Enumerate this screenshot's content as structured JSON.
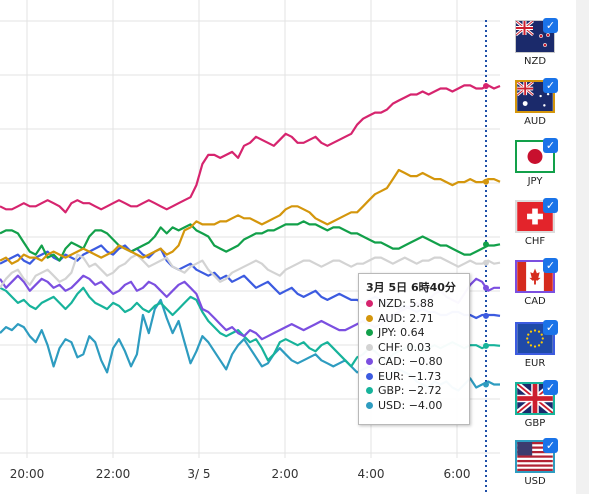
{
  "chart_data": {
    "type": "line",
    "title": "",
    "xlabel": "",
    "ylabel": "",
    "x_ticks": [
      "20:00",
      "22:00",
      "3/ 5",
      "2:00",
      "4:00",
      "6:00"
    ],
    "ylim": [
      -6.5,
      8
    ],
    "grid": true,
    "legend": "none",
    "crosshair_label": "3月 5日 6時40分",
    "series": [
      {
        "name": "NZD",
        "color": "#d6246e",
        "values": [
          1.9,
          1.8,
          1.8,
          1.9,
          2.0,
          1.9,
          1.9,
          2.0,
          2.1,
          2.0,
          1.9,
          1.7,
          2.0,
          2.1,
          2.0,
          2.0,
          1.9,
          1.8,
          1.9,
          2.0,
          2.1,
          2.0,
          1.9,
          1.9,
          2.0,
          2.1,
          2.0,
          1.9,
          1.8,
          1.9,
          2.0,
          2.1,
          2.2,
          2.6,
          3.3,
          3.6,
          3.6,
          3.5,
          3.6,
          3.7,
          3.5,
          3.9,
          4.0,
          4.2,
          4.1,
          4.0,
          3.9,
          4.1,
          4.3,
          4.2,
          4.0,
          4.0,
          4.1,
          4.2,
          4.0,
          3.9,
          4.0,
          4.1,
          4.2,
          4.3,
          4.6,
          4.8,
          4.9,
          5.0,
          5.0,
          5.1,
          5.3,
          5.4,
          5.5,
          5.6,
          5.6,
          5.7,
          5.6,
          5.7,
          5.8,
          5.8,
          5.7,
          5.8,
          5.9,
          5.9,
          5.8,
          5.8,
          5.9,
          5.8,
          5.88
        ]
      },
      {
        "name": "AUD",
        "color": "#d4960c",
        "values": [
          0.1,
          0.2,
          0.0,
          0.1,
          0.3,
          0.2,
          0.2,
          0.1,
          0.3,
          0.4,
          0.3,
          0.2,
          0.3,
          0.4,
          0.5,
          0.4,
          0.3,
          0.2,
          0.3,
          0.4,
          0.6,
          0.5,
          0.4,
          0.3,
          0.2,
          0.3,
          0.4,
          0.5,
          0.3,
          0.4,
          0.6,
          1.1,
          1.2,
          1.4,
          1.3,
          1.3,
          1.3,
          1.4,
          1.4,
          1.5,
          1.6,
          1.5,
          1.5,
          1.4,
          1.3,
          1.4,
          1.5,
          1.6,
          1.8,
          1.9,
          1.9,
          1.8,
          1.7,
          1.5,
          1.4,
          1.3,
          1.4,
          1.5,
          1.6,
          1.7,
          1.7,
          1.9,
          2.1,
          2.3,
          2.4,
          2.5,
          2.8,
          3.1,
          3.0,
          2.9,
          2.9,
          3.0,
          2.9,
          2.8,
          2.8,
          2.7,
          2.6,
          2.7,
          2.7,
          2.8,
          2.7,
          2.7,
          2.8,
          2.8,
          2.71
        ]
      },
      {
        "name": "JPY",
        "color": "#12a04a",
        "values": [
          1.0,
          1.1,
          1.1,
          1.0,
          0.7,
          0.4,
          0.3,
          0.6,
          0.2,
          0.3,
          0.1,
          0.5,
          0.7,
          0.6,
          0.5,
          0.9,
          1.1,
          1.1,
          1.0,
          0.8,
          0.6,
          0.5,
          0.4,
          0.5,
          0.6,
          0.7,
          0.9,
          1.2,
          1.0,
          1.2,
          1.1,
          1.2,
          1.3,
          1.1,
          1.0,
          0.9,
          0.6,
          0.5,
          0.4,
          0.5,
          0.6,
          0.8,
          0.9,
          1.0,
          1.0,
          1.1,
          1.1,
          1.2,
          1.3,
          1.3,
          1.3,
          1.4,
          1.3,
          1.3,
          1.2,
          1.1,
          1.2,
          1.2,
          1.1,
          1.0,
          1.0,
          0.9,
          0.8,
          0.7,
          0.7,
          0.6,
          0.5,
          0.5,
          0.6,
          0.7,
          0.8,
          0.9,
          0.8,
          0.7,
          0.6,
          0.6,
          0.5,
          0.4,
          0.3,
          0.3,
          0.4,
          0.5,
          0.6,
          0.6,
          0.64
        ]
      },
      {
        "name": "CHF",
        "color": "#d3d3d3",
        "values": [
          -0.8,
          -0.5,
          -0.3,
          -0.2,
          -0.5,
          -0.7,
          -0.4,
          -0.3,
          -0.2,
          -0.4,
          -0.6,
          -0.5,
          -0.3,
          0.3,
          0.2,
          -0.1,
          0.0,
          -0.2,
          -0.4,
          -0.3,
          -0.1,
          0.0,
          0.2,
          0.3,
          0.1,
          -0.1,
          0.0,
          0.1,
          0.2,
          -0.1,
          -0.2,
          -0.3,
          -0.1,
          0.0,
          0.1,
          -0.2,
          -0.4,
          -0.6,
          -0.5,
          -0.3,
          -0.2,
          -0.1,
          0.0,
          0.1,
          0.0,
          -0.2,
          -0.3,
          -0.4,
          -0.2,
          -0.1,
          0.0,
          0.1,
          0.1,
          0.0,
          -0.1,
          0.0,
          0.1,
          0.1,
          0.0,
          -0.1,
          0.0,
          0.0,
          0.1,
          0.2,
          0.2,
          0.1,
          0.0,
          0.1,
          0.2,
          0.1,
          0.0,
          0.1,
          0.1,
          0.2,
          0.2,
          0.1,
          0.0,
          -0.1,
          0.0,
          0.1,
          0.0,
          0.0,
          0.1,
          0.0,
          0.03
        ]
      },
      {
        "name": "CAD",
        "color": "#7b4fe0",
        "values": [
          -0.5,
          -0.8,
          -0.6,
          -0.4,
          -0.6,
          -0.9,
          -0.7,
          -0.5,
          -0.6,
          -0.8,
          -0.7,
          -0.9,
          -0.8,
          -0.6,
          -0.4,
          -0.5,
          -0.7,
          -0.6,
          -0.8,
          -1.0,
          -0.9,
          -0.7,
          -0.6,
          -0.9,
          -0.8,
          -0.6,
          -0.7,
          -0.9,
          -1.1,
          -0.9,
          -0.7,
          -0.6,
          -0.8,
          -1.0,
          -1.5,
          -1.6,
          -1.8,
          -2.0,
          -2.2,
          -2.1,
          -2.3,
          -2.4,
          -2.2,
          -2.3,
          -2.5,
          -2.4,
          -2.3,
          -2.2,
          -2.1,
          -2.0,
          -2.1,
          -2.2,
          -2.1,
          -2.0,
          -1.9,
          -2.0,
          -2.1,
          -2.2,
          -2.2,
          -2.1,
          -2.0,
          -1.9,
          -2.0,
          -2.1,
          -2.0,
          -1.8,
          -1.7,
          -1.6,
          -1.5,
          -1.4,
          -1.3,
          -1.4,
          -1.2,
          -1.0,
          -0.9,
          -1.1,
          -1.2,
          -1.3,
          -1.0,
          -0.7,
          -0.5,
          -0.6,
          -0.9,
          -0.8,
          -0.8
        ]
      },
      {
        "name": "EUR",
        "color": "#3c5be0",
        "values": [
          0.0,
          0.1,
          0.2,
          0.3,
          0.1,
          0.0,
          0.2,
          0.3,
          0.4,
          0.2,
          0.1,
          0.3,
          0.2,
          0.1,
          0.3,
          0.4,
          0.5,
          0.6,
          0.4,
          0.3,
          0.5,
          0.6,
          0.4,
          0.5,
          0.3,
          0.2,
          0.4,
          0.5,
          0.1,
          -0.1,
          -0.2,
          -0.1,
          0.0,
          -0.2,
          -0.3,
          -0.4,
          -0.3,
          -0.5,
          -0.4,
          -0.6,
          -0.5,
          -0.4,
          -0.6,
          -0.8,
          -0.7,
          -0.6,
          -0.8,
          -1.0,
          -0.9,
          -0.8,
          -1.0,
          -1.1,
          -1.0,
          -0.9,
          -1.1,
          -1.2,
          -1.1,
          -1.0,
          -1.1,
          -1.2,
          -1.2,
          -1.3,
          -1.2,
          -1.1,
          -1.2,
          -1.3,
          -1.4,
          -1.5,
          -1.4,
          -1.5,
          -1.6,
          -1.5,
          -1.6,
          -1.6,
          -1.7,
          -1.7,
          -1.6,
          -1.6,
          -1.7,
          -1.7,
          -1.8,
          -1.7,
          -1.7,
          -1.7,
          -1.73
        ]
      },
      {
        "name": "GBP",
        "color": "#17b39b",
        "values": [
          -0.8,
          -0.9,
          -1.1,
          -1.3,
          -1.2,
          -1.4,
          -1.5,
          -1.3,
          -1.2,
          -1.1,
          -1.3,
          -1.5,
          -1.3,
          -1.0,
          -0.8,
          -1.1,
          -1.3,
          -1.4,
          -1.5,
          -1.3,
          -1.4,
          -1.6,
          -1.5,
          -1.3,
          -1.5,
          -1.6,
          -1.4,
          -1.3,
          -1.5,
          -1.7,
          -1.5,
          -1.3,
          -1.1,
          -1.2,
          -1.6,
          -1.9,
          -2.1,
          -2.3,
          -2.4,
          -2.3,
          -2.2,
          -2.4,
          -2.6,
          -2.5,
          -2.8,
          -3.2,
          -3.0,
          -2.6,
          -2.5,
          -2.6,
          -2.7,
          -2.6,
          -2.8,
          -2.9,
          -2.7,
          -2.6,
          -2.8,
          -3.0,
          -3.2,
          -3.4,
          -3.1,
          -3.0,
          -2.8,
          -2.9,
          -3.1,
          -3.2,
          -3.0,
          -2.9,
          -2.8,
          -2.7,
          -2.8,
          -2.9,
          -2.8,
          -2.7,
          -2.8,
          -2.7,
          -2.6,
          -2.7,
          -2.8,
          -2.7,
          -2.7,
          -2.8,
          -2.7,
          -2.7,
          -2.72
        ]
      },
      {
        "name": "USD",
        "color": "#2e9cc0",
        "values": [
          -2.3,
          -2.1,
          -2.2,
          -2.0,
          -2.1,
          -2.4,
          -2.6,
          -2.2,
          -2.7,
          -3.4,
          -2.8,
          -2.5,
          -2.6,
          -3.1,
          -3.0,
          -2.4,
          -2.6,
          -3.2,
          -3.6,
          -2.8,
          -2.5,
          -2.9,
          -3.4,
          -3.0,
          -1.7,
          -2.3,
          -1.5,
          -1.2,
          -1.8,
          -2.3,
          -1.9,
          -2.6,
          -3.3,
          -2.9,
          -2.4,
          -2.6,
          -2.9,
          -3.2,
          -3.5,
          -3.0,
          -2.7,
          -2.5,
          -2.8,
          -3.1,
          -3.4,
          -3.3,
          -3.0,
          -2.8,
          -3.0,
          -3.2,
          -3.3,
          -3.2,
          -3.1,
          -3.0,
          -3.2,
          -3.3,
          -3.4,
          -3.3,
          -3.2,
          -3.4,
          -3.6,
          -3.5,
          -3.4,
          -3.5,
          -3.7,
          -3.8,
          -3.6,
          -3.5,
          -3.6,
          -3.7,
          -3.9,
          -4.0,
          -4.1,
          -3.9,
          -4.0,
          -3.9,
          -4.1,
          -4.2,
          -4.0,
          -3.8,
          -4.1,
          -4.0,
          -3.9,
          -4.0,
          -4.0
        ]
      }
    ]
  },
  "tooltip": {
    "title": "3月 5日 6時40分",
    "rows": [
      {
        "label": "NZD: 5.88",
        "color": "#d6246e"
      },
      {
        "label": "AUD: 2.71",
        "color": "#d4960c"
      },
      {
        "label": "JPY: 0.64",
        "color": "#12a04a"
      },
      {
        "label": "CHF: 0.03",
        "color": "#d3d3d3"
      },
      {
        "label": "CAD: −0.80",
        "color": "#7b4fe0"
      },
      {
        "label": "EUR: −1.73",
        "color": "#3c5be0"
      },
      {
        "label": "GBP: −2.72",
        "color": "#17b39b"
      },
      {
        "label": "USD: −4.00",
        "color": "#2e9cc0"
      }
    ]
  },
  "currencies": [
    {
      "code": "NZD",
      "icon": "nz-flag-icon",
      "checked": true
    },
    {
      "code": "AUD",
      "icon": "au-flag-icon",
      "checked": true
    },
    {
      "code": "JPY",
      "icon": "jp-flag-icon",
      "checked": true
    },
    {
      "code": "CHF",
      "icon": "ch-flag-icon",
      "checked": true
    },
    {
      "code": "CAD",
      "icon": "ca-flag-icon",
      "checked": true
    },
    {
      "code": "EUR",
      "icon": "eu-flag-icon",
      "checked": true
    },
    {
      "code": "GBP",
      "icon": "gb-flag-icon",
      "checked": true
    },
    {
      "code": "USD",
      "icon": "us-flag-icon",
      "checked": true
    }
  ],
  "colors": {
    "grid": "#e3e3e3",
    "crosshair": "#1f4fa8",
    "accent": "#1a73e8"
  }
}
